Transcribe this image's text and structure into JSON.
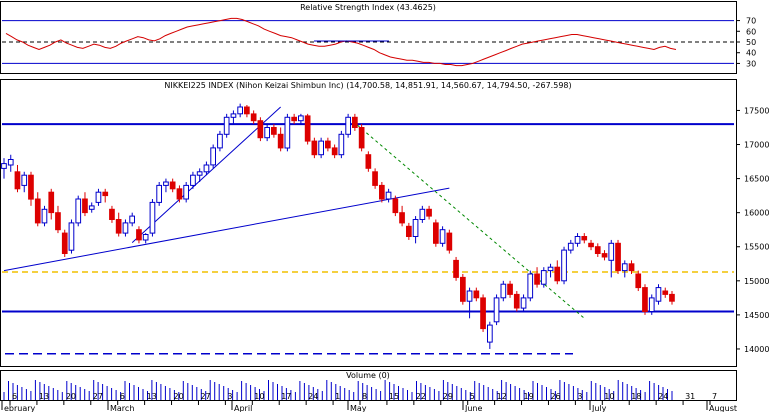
{
  "rsi_panel": {
    "title": "Relative Strength Index (43.4625)",
    "ticks": [
      30,
      40,
      50,
      60,
      70
    ],
    "ylim": [
      22,
      78
    ],
    "levels": [
      {
        "value": 70,
        "style": "solid",
        "color": "#0000cc"
      },
      {
        "value": 50,
        "style": "dashed",
        "color": "#000000"
      },
      {
        "value": 30,
        "style": "solid",
        "color": "#0000cc"
      }
    ],
    "line_color": "#d40000",
    "values": [
      58,
      55,
      52,
      50,
      47,
      45,
      43,
      45,
      47,
      50,
      52,
      49,
      47,
      45,
      44,
      46,
      48,
      47,
      45,
      44,
      46,
      49,
      51,
      53,
      55,
      54,
      52,
      51,
      53,
      56,
      58,
      60,
      62,
      64,
      65,
      66,
      67,
      68,
      69,
      70,
      71,
      72,
      72,
      71,
      69,
      67,
      65,
      62,
      60,
      58,
      56,
      55,
      54,
      52,
      50,
      48,
      47,
      46,
      46,
      47,
      48,
      50,
      51,
      50,
      49,
      47,
      45,
      43,
      40,
      38,
      36,
      35,
      34,
      33,
      33,
      32,
      31,
      31,
      30,
      30,
      29,
      29,
      28,
      28,
      29,
      30,
      32,
      34,
      36,
      38,
      40,
      42,
      44,
      46,
      48,
      49,
      50,
      51,
      52,
      53,
      54,
      55,
      56,
      57,
      57,
      56,
      55,
      54,
      53,
      52,
      51,
      50,
      49,
      48,
      47,
      46,
      45,
      44,
      43,
      45,
      46,
      44,
      43
    ]
  },
  "price_panel": {
    "title": "NIKKEI225 INDEX (Nihon Keizai Shimbun Inc) (14,700.58, 14,851.91, 14,560.67, 14,794.50, -267.598)",
    "ticks": [
      14000,
      14500,
      15000,
      15500,
      16000,
      16500,
      17000,
      17500
    ],
    "ylim": [
      13750,
      17800
    ],
    "up_color": "#0000cc",
    "down_color": "#dd0000",
    "horizontal_lines": [
      {
        "value": 17300,
        "color": "#0000cc",
        "style": "solid"
      },
      {
        "value": 14550,
        "color": "#0000cc",
        "style": "solid"
      },
      {
        "value": 15130,
        "color": "#f0c000",
        "style": "dashed"
      },
      {
        "value": 13930,
        "color": "#0000cc",
        "style": "dashed"
      }
    ]
  },
  "volume_panel": {
    "title": "Volume (0)",
    "bar_color": "#0000cc"
  },
  "x_axis": {
    "months": [
      "ebruary",
      "March",
      "April",
      "May",
      "June",
      "July",
      "August"
    ],
    "days": [
      "6",
      "13",
      "20",
      "27",
      "6",
      "13",
      "20",
      "27",
      "3",
      "10",
      "17",
      "24",
      "1",
      "8",
      "15",
      "22",
      "29",
      "5",
      "12",
      "19",
      "26",
      "3",
      "10",
      "18",
      "24",
      "31",
      "7"
    ]
  },
  "chart_data": {
    "type": "candlestick",
    "title": "NIKKEI225 INDEX (Nihon Keizai Shimbun Inc) (14,700.58, 14,851.91, 14,560.67, 14,794.50, -267.598)",
    "ylim": [
      13750,
      17800
    ],
    "candles": [
      {
        "o": 16650,
        "h": 16800,
        "l": 16500,
        "c": 16720
      },
      {
        "o": 16700,
        "h": 16850,
        "l": 16600,
        "c": 16780
      },
      {
        "o": 16600,
        "h": 16700,
        "l": 16300,
        "c": 16350
      },
      {
        "o": 16400,
        "h": 16600,
        "l": 16300,
        "c": 16550
      },
      {
        "o": 16550,
        "h": 16600,
        "l": 16100,
        "c": 16200
      },
      {
        "o": 16200,
        "h": 16300,
        "l": 15800,
        "c": 15850
      },
      {
        "o": 15850,
        "h": 16100,
        "l": 15800,
        "c": 16050
      },
      {
        "o": 16300,
        "h": 16350,
        "l": 15900,
        "c": 16000
      },
      {
        "o": 16000,
        "h": 16100,
        "l": 15700,
        "c": 15750
      },
      {
        "o": 15700,
        "h": 15750,
        "l": 15350,
        "c": 15400
      },
      {
        "o": 15450,
        "h": 15900,
        "l": 15400,
        "c": 15850
      },
      {
        "o": 15850,
        "h": 16250,
        "l": 15800,
        "c": 16200
      },
      {
        "o": 16200,
        "h": 16300,
        "l": 15950,
        "c": 16000
      },
      {
        "o": 16050,
        "h": 16150,
        "l": 16000,
        "c": 16100
      },
      {
        "o": 16150,
        "h": 16350,
        "l": 16100,
        "c": 16300
      },
      {
        "o": 16300,
        "h": 16350,
        "l": 16150,
        "c": 16250
      },
      {
        "o": 16050,
        "h": 16100,
        "l": 15850,
        "c": 15900
      },
      {
        "o": 15900,
        "h": 16000,
        "l": 15650,
        "c": 15700
      },
      {
        "o": 15700,
        "h": 15900,
        "l": 15650,
        "c": 15850
      },
      {
        "o": 15850,
        "h": 16000,
        "l": 15800,
        "c": 15950
      },
      {
        "o": 15750,
        "h": 15800,
        "l": 15550,
        "c": 15600
      },
      {
        "o": 15600,
        "h": 15700,
        "l": 15550,
        "c": 15680
      },
      {
        "o": 15700,
        "h": 16200,
        "l": 15650,
        "c": 16150
      },
      {
        "o": 16150,
        "h": 16450,
        "l": 16100,
        "c": 16400
      },
      {
        "o": 16400,
        "h": 16500,
        "l": 16300,
        "c": 16450
      },
      {
        "o": 16450,
        "h": 16500,
        "l": 16300,
        "c": 16350
      },
      {
        "o": 16350,
        "h": 16400,
        "l": 16150,
        "c": 16200
      },
      {
        "o": 16200,
        "h": 16450,
        "l": 16150,
        "c": 16400
      },
      {
        "o": 16400,
        "h": 16600,
        "l": 16350,
        "c": 16550
      },
      {
        "o": 16550,
        "h": 16650,
        "l": 16450,
        "c": 16600
      },
      {
        "o": 16600,
        "h": 16750,
        "l": 16550,
        "c": 16700
      },
      {
        "o": 16700,
        "h": 17000,
        "l": 16650,
        "c": 16950
      },
      {
        "o": 16950,
        "h": 17200,
        "l": 16900,
        "c": 17150
      },
      {
        "o": 17150,
        "h": 17450,
        "l": 17100,
        "c": 17400
      },
      {
        "o": 17400,
        "h": 17500,
        "l": 17300,
        "c": 17450
      },
      {
        "o": 17450,
        "h": 17600,
        "l": 17400,
        "c": 17550
      },
      {
        "o": 17550,
        "h": 17580,
        "l": 17400,
        "c": 17450
      },
      {
        "o": 17450,
        "h": 17500,
        "l": 17300,
        "c": 17350
      },
      {
        "o": 17350,
        "h": 17400,
        "l": 17050,
        "c": 17100
      },
      {
        "o": 17100,
        "h": 17300,
        "l": 17050,
        "c": 17250
      },
      {
        "o": 17250,
        "h": 17300,
        "l": 17100,
        "c": 17150
      },
      {
        "o": 17150,
        "h": 17250,
        "l": 16900,
        "c": 16950
      },
      {
        "o": 16950,
        "h": 17450,
        "l": 16900,
        "c": 17400
      },
      {
        "o": 17400,
        "h": 17450,
        "l": 17300,
        "c": 17350
      },
      {
        "o": 17350,
        "h": 17450,
        "l": 17300,
        "c": 17420
      },
      {
        "o": 17420,
        "h": 17450,
        "l": 17000,
        "c": 17050
      },
      {
        "o": 17050,
        "h": 17100,
        "l": 16800,
        "c": 16850
      },
      {
        "o": 16850,
        "h": 17100,
        "l": 16800,
        "c": 17050
      },
      {
        "o": 17050,
        "h": 17100,
        "l": 16900,
        "c": 16950
      },
      {
        "o": 16950,
        "h": 17000,
        "l": 16800,
        "c": 16850
      },
      {
        "o": 16850,
        "h": 17200,
        "l": 16800,
        "c": 17150
      },
      {
        "o": 17150,
        "h": 17450,
        "l": 17100,
        "c": 17400
      },
      {
        "o": 17400,
        "h": 17450,
        "l": 17200,
        "c": 17250
      },
      {
        "o": 17250,
        "h": 17300,
        "l": 16900,
        "c": 16950
      },
      {
        "o": 16850,
        "h": 16900,
        "l": 16600,
        "c": 16650
      },
      {
        "o": 16600,
        "h": 16650,
        "l": 16350,
        "c": 16400
      },
      {
        "o": 16400,
        "h": 16450,
        "l": 16150,
        "c": 16200
      },
      {
        "o": 16200,
        "h": 16350,
        "l": 16150,
        "c": 16300
      },
      {
        "o": 16200,
        "h": 16250,
        "l": 15950,
        "c": 16000
      },
      {
        "o": 16000,
        "h": 16100,
        "l": 15800,
        "c": 15850
      },
      {
        "o": 15800,
        "h": 15850,
        "l": 15600,
        "c": 15650
      },
      {
        "o": 15650,
        "h": 15950,
        "l": 15550,
        "c": 15900
      },
      {
        "o": 15900,
        "h": 16100,
        "l": 15850,
        "c": 16050
      },
      {
        "o": 16050,
        "h": 16100,
        "l": 15900,
        "c": 15950
      },
      {
        "o": 15850,
        "h": 15900,
        "l": 15500,
        "c": 15550
      },
      {
        "o": 15550,
        "h": 15800,
        "l": 15500,
        "c": 15750
      },
      {
        "o": 15700,
        "h": 15750,
        "l": 15400,
        "c": 15450
      },
      {
        "o": 15300,
        "h": 15350,
        "l": 15000,
        "c": 15050
      },
      {
        "o": 15050,
        "h": 15100,
        "l": 14650,
        "c": 14700
      },
      {
        "o": 14700,
        "h": 14900,
        "l": 14450,
        "c": 14850
      },
      {
        "o": 14850,
        "h": 14900,
        "l": 14700,
        "c": 14750
      },
      {
        "o": 14750,
        "h": 14800,
        "l": 14250,
        "c": 14300
      },
      {
        "o": 14100,
        "h": 14400,
        "l": 14000,
        "c": 14350
      },
      {
        "o": 14400,
        "h": 14800,
        "l": 14350,
        "c": 14750
      },
      {
        "o": 14750,
        "h": 15000,
        "l": 14700,
        "c": 14950
      },
      {
        "o": 14950,
        "h": 15000,
        "l": 14750,
        "c": 14800
      },
      {
        "o": 14800,
        "h": 14850,
        "l": 14550,
        "c": 14600
      },
      {
        "o": 14600,
        "h": 14800,
        "l": 14550,
        "c": 14750
      },
      {
        "o": 14750,
        "h": 15150,
        "l": 14700,
        "c": 15100
      },
      {
        "o": 15100,
        "h": 15200,
        "l": 14900,
        "c": 14950
      },
      {
        "o": 14950,
        "h": 15200,
        "l": 14900,
        "c": 15150
      },
      {
        "o": 15150,
        "h": 15250,
        "l": 15050,
        "c": 15200
      },
      {
        "o": 15200,
        "h": 15300,
        "l": 14950,
        "c": 15000
      },
      {
        "o": 15000,
        "h": 15500,
        "l": 14950,
        "c": 15450
      },
      {
        "o": 15450,
        "h": 15600,
        "l": 15400,
        "c": 15550
      },
      {
        "o": 15550,
        "h": 15700,
        "l": 15500,
        "c": 15650
      },
      {
        "o": 15650,
        "h": 15700,
        "l": 15550,
        "c": 15600
      },
      {
        "o": 15550,
        "h": 15600,
        "l": 15450,
        "c": 15500
      },
      {
        "o": 15500,
        "h": 15550,
        "l": 15350,
        "c": 15400
      },
      {
        "o": 15400,
        "h": 15450,
        "l": 15300,
        "c": 15350
      },
      {
        "o": 15300,
        "h": 15600,
        "l": 15050,
        "c": 15550
      },
      {
        "o": 15550,
        "h": 15600,
        "l": 15100,
        "c": 15150
      },
      {
        "o": 15150,
        "h": 15300,
        "l": 15050,
        "c": 15250
      },
      {
        "o": 15250,
        "h": 15300,
        "l": 15100,
        "c": 15150
      },
      {
        "o": 15100,
        "h": 15150,
        "l": 14850,
        "c": 14900
      },
      {
        "o": 14900,
        "h": 14950,
        "l": 14500,
        "c": 14550
      },
      {
        "o": 14550,
        "h": 14800,
        "l": 14500,
        "c": 14750
      },
      {
        "o": 14700,
        "h": 14950,
        "l": 14650,
        "c": 14900
      },
      {
        "o": 14850,
        "h": 14900,
        "l": 14750,
        "c": 14800
      },
      {
        "o": 14800,
        "h": 14850,
        "l": 14650,
        "c": 14700
      }
    ],
    "trendlines": [
      {
        "from": {
          "i": 0,
          "v": 15150
        },
        "to": {
          "i": 66,
          "v": 16360
        },
        "color": "#0000cc",
        "style": "solid"
      },
      {
        "from": {
          "i": 19,
          "v": 15560
        },
        "to": {
          "i": 41,
          "v": 17550
        },
        "color": "#0000cc",
        "style": "solid"
      },
      {
        "from": {
          "i": 51,
          "v": 17400
        },
        "to": {
          "i": 86,
          "v": 14450
        },
        "color": "#008800",
        "style": "dashed"
      }
    ]
  }
}
